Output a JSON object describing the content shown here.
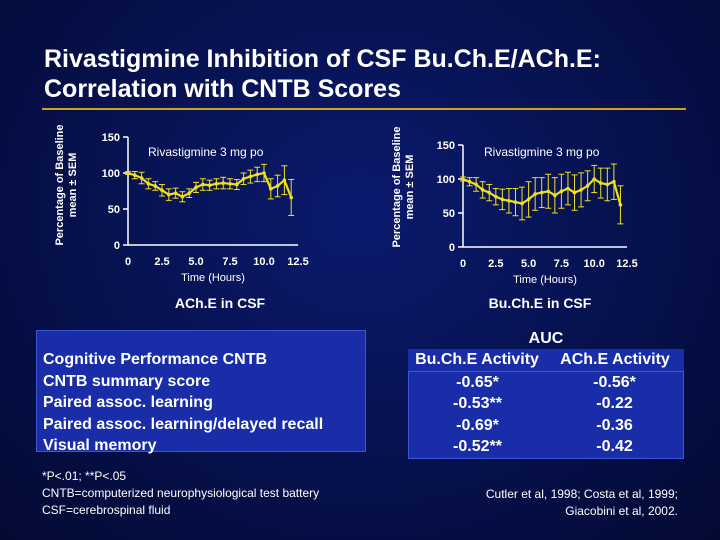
{
  "title": [
    "Rivastigmine Inhibition of CSF Bu.Ch.E/ACh.E:",
    "Correlation with CNTB Scores"
  ],
  "colors": {
    "accent": "#c9a227",
    "curve": "#f0e020",
    "panel": "#1a2da8"
  },
  "chart_data": [
    {
      "type": "line",
      "title": "ACh.E in CSF",
      "annotation": "Rivastigmine 3 mg po",
      "xlabel": "Time (Hours)",
      "ylabel": "Percentage of Baseline mean ± SEM",
      "xlim": [
        0,
        12.5
      ],
      "ylim": [
        0,
        150
      ],
      "xticks": [
        0,
        2.5,
        5.0,
        7.5,
        10.0,
        12.5
      ],
      "xtick_labels": [
        "0",
        "2.5",
        "5.0",
        "7.5",
        "10.0",
        "12.5"
      ],
      "yticks": [
        0,
        50,
        100,
        150
      ],
      "ytick_labels": [
        "0",
        "50",
        "100",
        "150"
      ],
      "x": [
        0,
        0.5,
        1,
        1.5,
        2,
        2.5,
        3,
        3.5,
        4,
        4.5,
        5,
        5.5,
        6,
        6.5,
        7,
        7.5,
        8,
        8.5,
        9,
        9.5,
        10,
        10.5,
        11,
        11.5,
        12
      ],
      "y": [
        100,
        97,
        93,
        85,
        82,
        76,
        70,
        72,
        67,
        72,
        80,
        84,
        83,
        85,
        86,
        85,
        84,
        92,
        95,
        98,
        100,
        78,
        82,
        90,
        66
      ],
      "err": [
        2,
        5,
        8,
        7,
        6,
        8,
        8,
        7,
        7,
        6,
        7,
        8,
        7,
        7,
        8,
        7,
        7,
        8,
        9,
        10,
        12,
        14,
        15,
        20,
        25
      ]
    },
    {
      "type": "line",
      "title": "Bu.Ch.E in CSF",
      "annotation": "Rivastigmine 3 mg po",
      "xlabel": "Time (Hours)",
      "ylabel": "Percentage of Baseline mean ± SEM",
      "xlim": [
        0,
        12.5
      ],
      "ylim": [
        0,
        150
      ],
      "xticks": [
        0,
        2.5,
        5.0,
        7.5,
        10.0,
        12.5
      ],
      "xtick_labels": [
        "0",
        "2.5",
        "5.0",
        "7.5",
        "10.0",
        "12.5"
      ],
      "yticks": [
        0,
        50,
        100,
        150
      ],
      "ytick_labels": [
        "0",
        "50",
        "100",
        "150"
      ],
      "x": [
        0,
        0.5,
        1,
        1.5,
        2,
        2.5,
        3,
        3.5,
        4,
        4.5,
        5,
        5.5,
        6,
        6.5,
        7,
        7.5,
        8,
        8.5,
        9,
        9.5,
        10,
        10.5,
        11,
        11.5,
        12
      ],
      "y": [
        100,
        96,
        92,
        84,
        80,
        74,
        70,
        68,
        66,
        64,
        70,
        78,
        80,
        82,
        76,
        82,
        86,
        80,
        84,
        90,
        100,
        94,
        92,
        96,
        62
      ],
      "err": [
        3,
        6,
        10,
        12,
        12,
        12,
        15,
        18,
        20,
        24,
        26,
        24,
        22,
        25,
        26,
        25,
        24,
        26,
        25,
        22,
        20,
        22,
        24,
        26,
        28
      ]
    }
  ],
  "cognitive": {
    "rows": [
      "Cognitive Performance CNTB",
      "CNTB summary score",
      "Paired assoc. learning",
      "Paired assoc. learning/delayed recall",
      "Visual memory"
    ]
  },
  "auc": {
    "header": "AUC",
    "col1": "Bu.Ch.E Activity",
    "col2": "ACh.E Activity",
    "rows": [
      [
        "-0.65*",
        "-0.56*"
      ],
      [
        "-0.53**",
        "-0.22"
      ],
      [
        "-0.69*",
        "-0.36"
      ],
      [
        "-0.52**",
        "-0.42"
      ]
    ]
  },
  "footnotes_left": [
    "*P<.01; **P<.05",
    "CNTB=computerized neurophysiological test battery",
    "CSF=cerebrospinal fluid"
  ],
  "footnotes_right": [
    "Cutler et al, 1998; Costa et al, 1999;",
    "Giacobini et al, 2002."
  ]
}
